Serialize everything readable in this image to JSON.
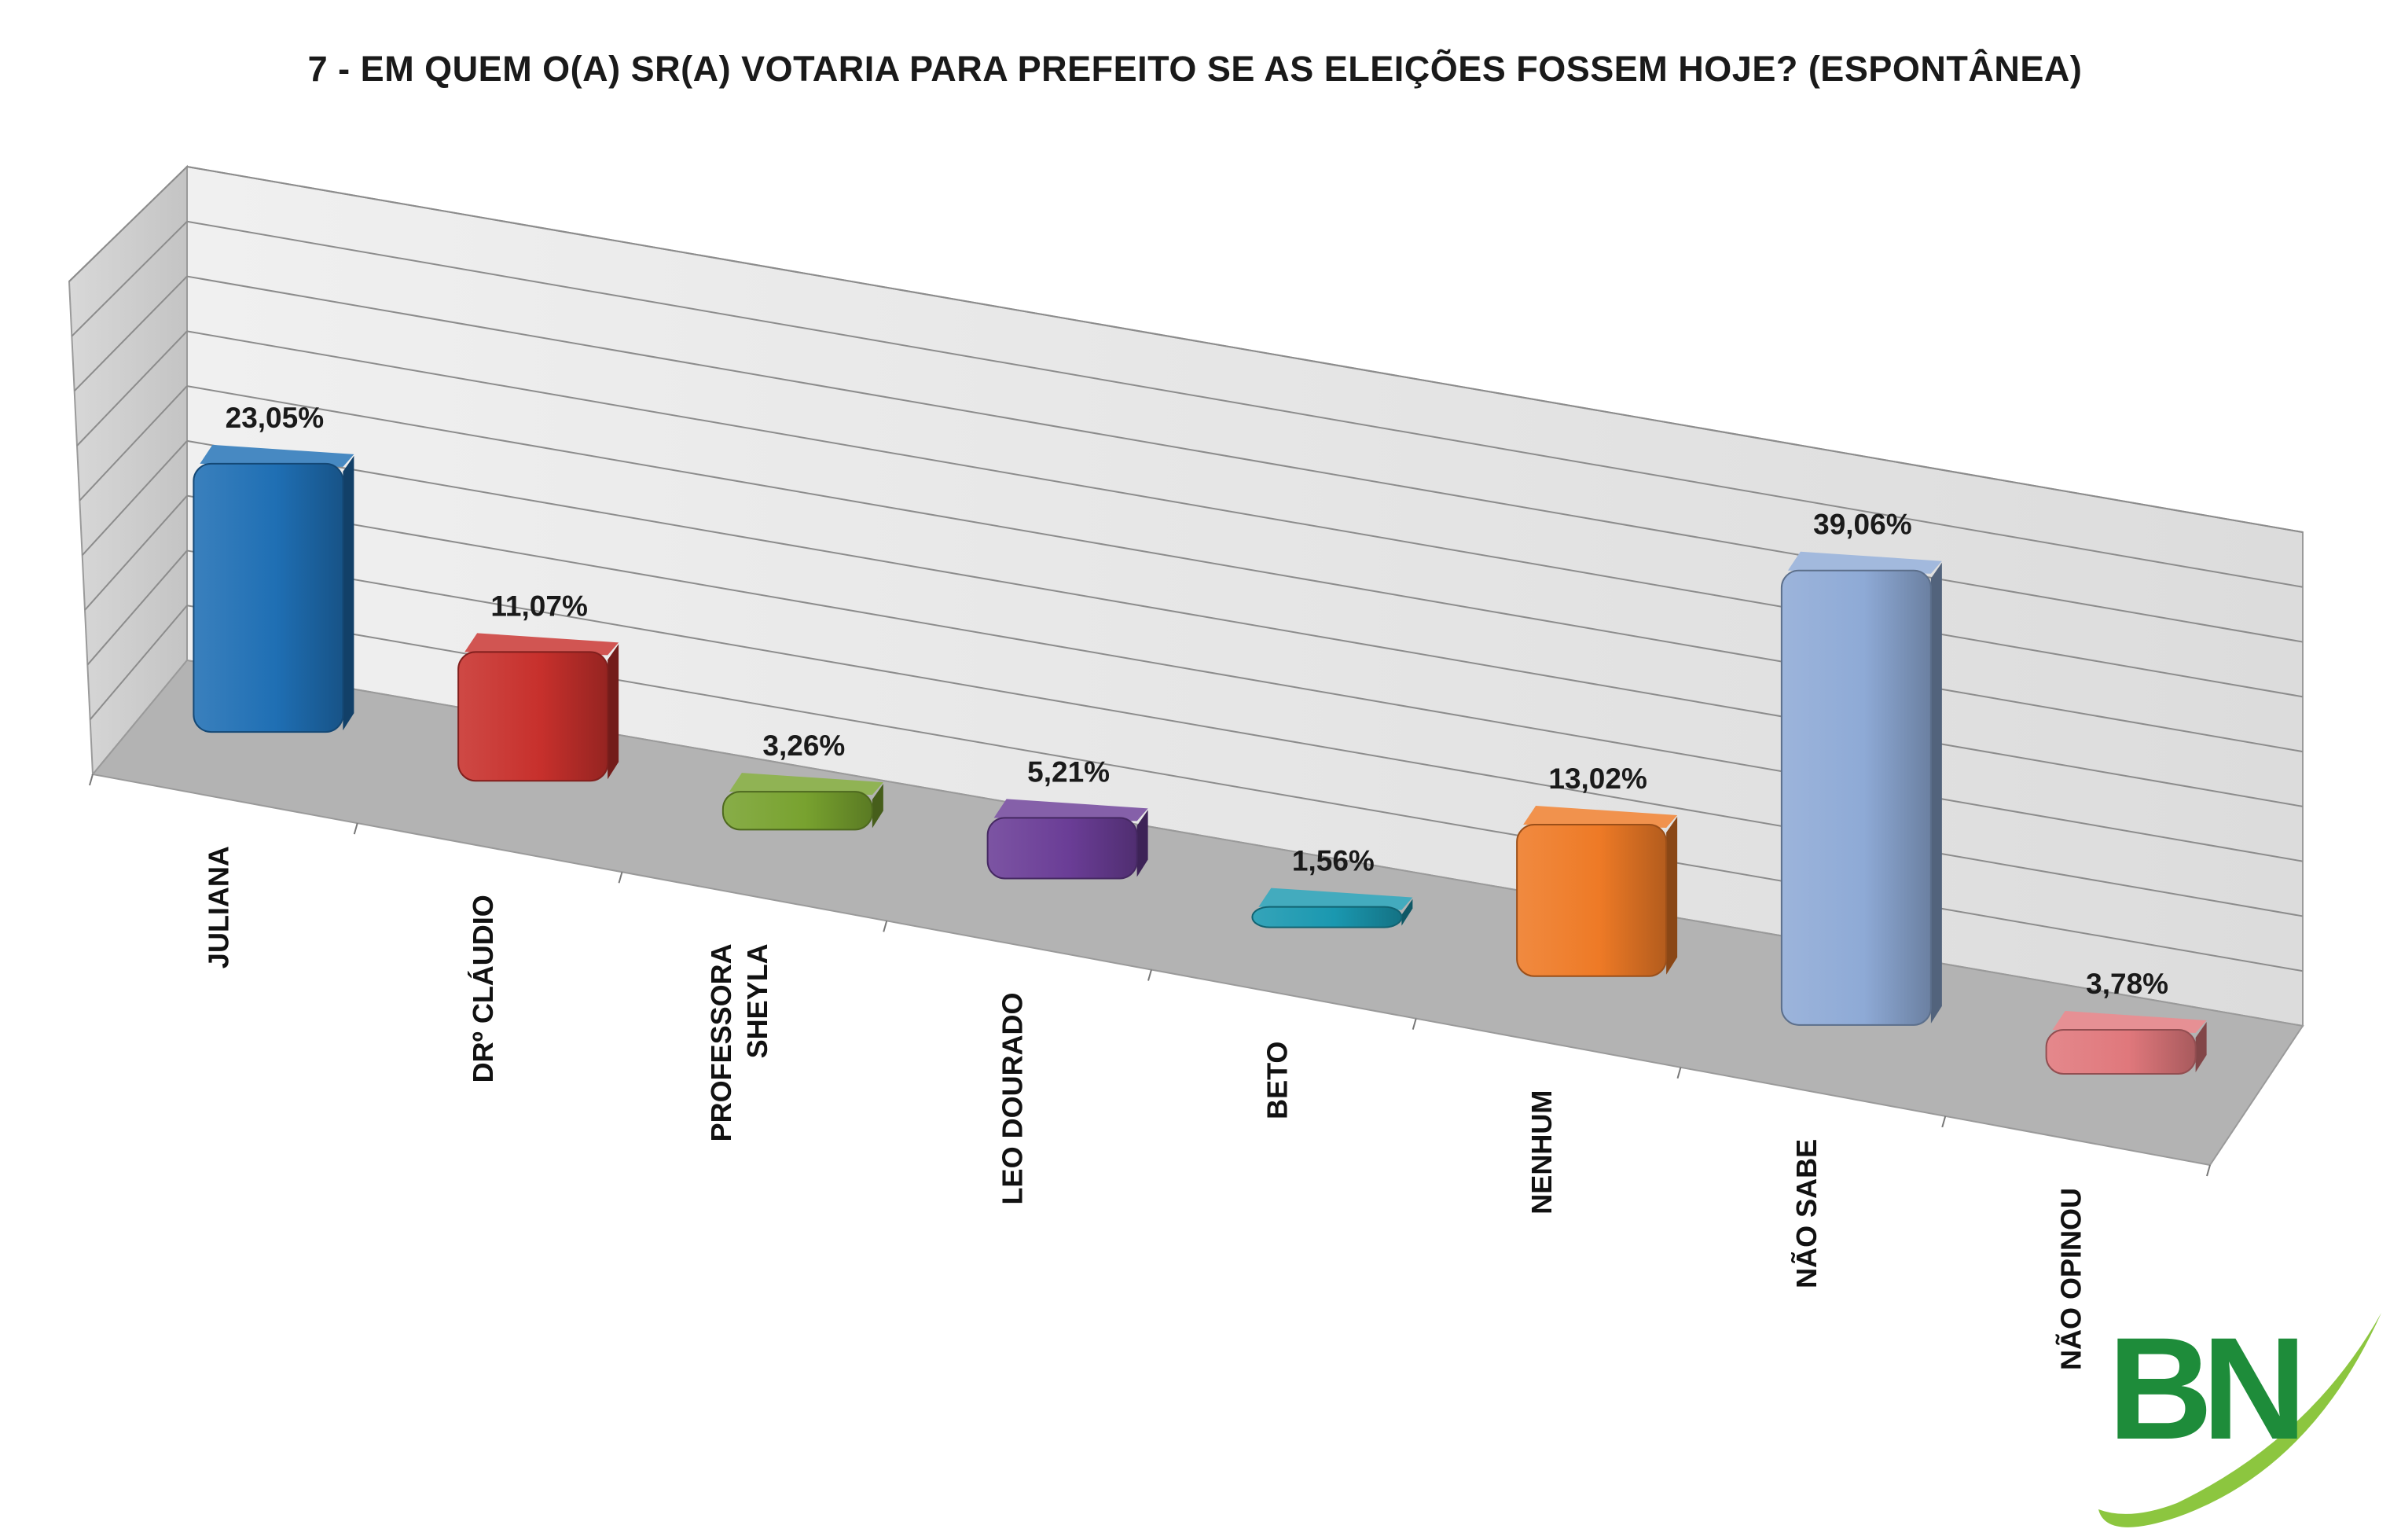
{
  "chart_data": {
    "type": "bar",
    "title": "7 - EM QUEM O(A) SR(A) VOTARIA PARA PREFEITO SE AS ELEIÇÕES FOSSEM HOJE? (ESPONTÂNEA)",
    "categories": [
      "JULIANA",
      "DRº CLÁUDIO",
      "PROFESSORA SHEYLA",
      "LEO DOURADO",
      "BETO",
      "NENHUM",
      "NÃO SABE",
      "NÃO OPINOU"
    ],
    "category_lines": [
      [
        "JULIANA"
      ],
      [
        "DRº CLÁUDIO"
      ],
      [
        "PROFESSORA",
        "SHEYLA"
      ],
      [
        "LEO DOURADO"
      ],
      [
        "BETO"
      ],
      [
        "NENHUM"
      ],
      [
        "NÃO SABE"
      ],
      [
        "NÃO OPINOU"
      ]
    ],
    "values": [
      23.05,
      11.07,
      3.26,
      5.21,
      1.56,
      13.02,
      39.06,
      3.78
    ],
    "value_labels": [
      "23,05%",
      "11,07%",
      "3,26%",
      "5,21%",
      "1,56%",
      "13,02%",
      "39,06%",
      "3,78%"
    ],
    "colors": [
      "#1f6fb4",
      "#c7302c",
      "#78a22f",
      "#6a3d96",
      "#1a98b0",
      "#ee7a26",
      "#8eaad6",
      "#e0787c"
    ],
    "style": "3d-perspective",
    "grid": true,
    "legend": "none"
  },
  "logo": {
    "text": "BN",
    "color": "#1e8c3a",
    "swoosh_color": "#8cc63f"
  }
}
